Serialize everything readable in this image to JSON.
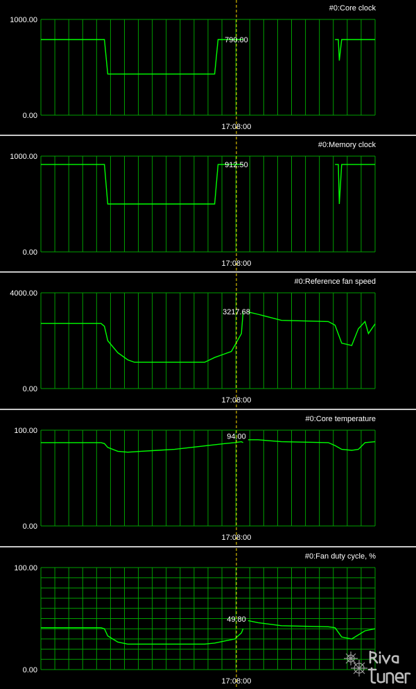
{
  "colors": {
    "background": "#000000",
    "grid": "#00a000",
    "line": "#00ff00",
    "cursor": "#ffe000",
    "text": "#ffffff",
    "separator": "#c8c8c8"
  },
  "cursor_time": "17:08:00",
  "watermark": {
    "text": "Riva Tuner"
  },
  "chart_data": [
    {
      "type": "line",
      "title": "#0:Core clock",
      "ylim": [
        0,
        1000
      ],
      "ytick_labels": [
        "1000.00",
        "0.00"
      ],
      "xtick_label": "17:08:00",
      "cursor_value": "790.00",
      "grid": "vertical",
      "x": [
        0,
        0.19,
        0.2,
        0.52,
        0.53,
        0.605,
        0.615,
        0.88,
        0.89,
        0.893,
        0.9,
        1.0
      ],
      "values": [
        790,
        790,
        430,
        430,
        790,
        790,
        null,
        790,
        790,
        570,
        790,
        790
      ]
    },
    {
      "type": "line",
      "title": "#0:Memory clock",
      "ylim": [
        0,
        1000
      ],
      "ytick_labels": [
        "1000.00",
        "0.00"
      ],
      "xtick_label": "17:08:00",
      "cursor_value": "912.50",
      "grid": "vertical",
      "x": [
        0,
        0.19,
        0.2,
        0.52,
        0.53,
        0.605,
        0.615,
        0.88,
        0.89,
        0.893,
        0.9,
        1.0
      ],
      "values": [
        912.5,
        912.5,
        500,
        500,
        912.5,
        912.5,
        null,
        912.5,
        912.5,
        500,
        912.5,
        912.5
      ]
    },
    {
      "type": "line",
      "title": "#0:Reference fan speed",
      "ylim": [
        0,
        4000
      ],
      "ytick_labels": [
        "4000.00",
        "0.00"
      ],
      "xtick_label": "17:08:00",
      "cursor_value": "3217.68",
      "grid": "vertical",
      "x": [
        0,
        0.18,
        0.19,
        0.2,
        0.23,
        0.26,
        0.28,
        0.3,
        0.35,
        0.4,
        0.45,
        0.49,
        0.52,
        0.55,
        0.57,
        0.58,
        0.6,
        0.605,
        0.615,
        0.62,
        0.65,
        0.72,
        0.86,
        0.88,
        0.9,
        0.93,
        0.95,
        0.97,
        0.98,
        1.0
      ],
      "values": [
        2720,
        2720,
        2600,
        2000,
        1500,
        1200,
        1100,
        1100,
        1100,
        1100,
        1100,
        1100,
        1300,
        1450,
        1550,
        1800,
        2300,
        3200,
        null,
        3200,
        3100,
        2850,
        2800,
        2650,
        1900,
        1800,
        2500,
        2800,
        2300,
        2700
      ]
    },
    {
      "type": "line",
      "title": "#0:Core temperature",
      "ylim": [
        0,
        100
      ],
      "ytick_labels": [
        "100.00",
        "0.00"
      ],
      "xtick_label": "17:08:00",
      "cursor_value": "94.00",
      "grid": "vertical",
      "x": [
        0,
        0.18,
        0.19,
        0.2,
        0.23,
        0.26,
        0.3,
        0.35,
        0.4,
        0.45,
        0.5,
        0.55,
        0.58,
        0.6,
        0.605,
        0.615,
        0.62,
        0.65,
        0.72,
        0.86,
        0.88,
        0.9,
        0.93,
        0.95,
        0.97,
        1.0
      ],
      "values": [
        87,
        87,
        86,
        82,
        78,
        77,
        78,
        79,
        80,
        82,
        84,
        86,
        87,
        88,
        87,
        null,
        90,
        90,
        88,
        87,
        84,
        80,
        79,
        80,
        87,
        88
      ]
    },
    {
      "type": "line",
      "title": "#0:Fan duty cycle, %",
      "ylim": [
        0,
        100
      ],
      "ytick_labels": [
        "100.00",
        "0.00"
      ],
      "xtick_label": "17:08:00",
      "cursor_value": "49.80",
      "grid": "full",
      "x": [
        0,
        0.18,
        0.19,
        0.2,
        0.23,
        0.26,
        0.3,
        0.4,
        0.45,
        0.49,
        0.52,
        0.55,
        0.58,
        0.6,
        0.605,
        0.615,
        0.62,
        0.65,
        0.72,
        0.86,
        0.88,
        0.9,
        0.93,
        0.95,
        0.97,
        1.0
      ],
      "values": [
        41,
        41,
        40,
        33,
        27,
        25,
        25,
        25,
        25,
        25,
        26,
        28,
        30,
        36,
        40,
        null,
        48,
        46,
        43,
        42,
        41,
        32,
        30,
        34,
        38,
        40
      ]
    }
  ]
}
